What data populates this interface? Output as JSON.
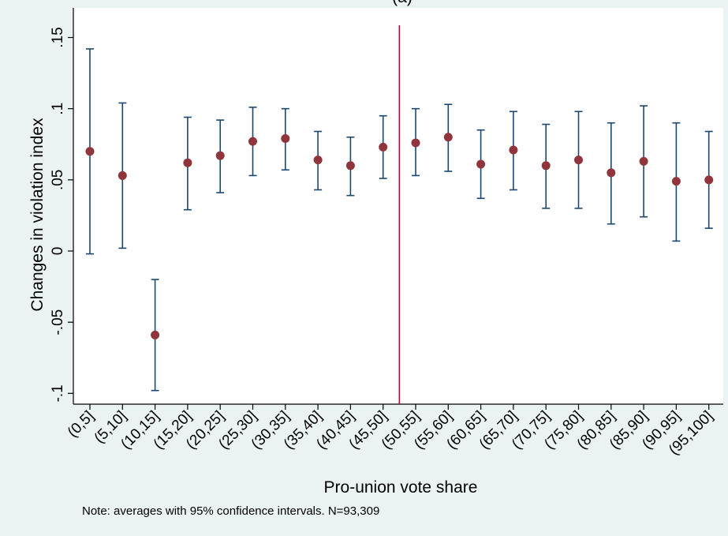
{
  "chart_data": {
    "type": "scatter",
    "title": "(a)",
    "xlabel": "Pro-union vote share",
    "ylabel": "Changes in violation index",
    "note": "Note: averages with 95% confidence intervals. N=93,309",
    "ylim": [
      -0.105,
      0.157
    ],
    "yticks": [
      {
        "value": -0.1,
        "label": "-.1"
      },
      {
        "value": -0.05,
        "label": "-.05"
      },
      {
        "value": 0,
        "label": "0"
      },
      {
        "value": 0.05,
        "label": ".05"
      },
      {
        "value": 0.1,
        "label": ".1"
      },
      {
        "value": 0.15,
        "label": ".15"
      }
    ],
    "categories": [
      "(0,5]",
      "(5,10]",
      "(10,15]",
      "(15,20]",
      "(20,25]",
      "(25,30]",
      "(30,35]",
      "(35,40]",
      "(40,45]",
      "(45,50]",
      "(50,55]",
      "(55,60]",
      "(60,65]",
      "(65,70]",
      "(70,75]",
      "(75,80]",
      "(80,85]",
      "(85,90]",
      "(90,95]",
      "(95,100]"
    ],
    "series": [
      {
        "values": [
          0.07,
          0.053,
          -0.059,
          0.062,
          0.067,
          0.077,
          0.079,
          0.064,
          0.06,
          0.073,
          0.076,
          0.08,
          0.061,
          0.071,
          0.06,
          0.064,
          0.055,
          0.063,
          0.049,
          0.05
        ],
        "ci_low": [
          -0.002,
          0.002,
          -0.098,
          0.029,
          0.041,
          0.053,
          0.057,
          0.043,
          0.039,
          0.051,
          0.053,
          0.056,
          0.037,
          0.043,
          0.03,
          0.03,
          0.019,
          0.024,
          0.007,
          0.016
        ],
        "ci_high": [
          0.142,
          0.104,
          -0.02,
          0.094,
          0.092,
          0.101,
          0.1,
          0.084,
          0.08,
          0.095,
          0.1,
          0.103,
          0.085,
          0.098,
          0.089,
          0.098,
          0.09,
          0.102,
          0.09,
          0.084
        ]
      }
    ],
    "cutoff_after_category": "(45,50]",
    "grid": false,
    "colors": {
      "background": "#eaf2f3",
      "plot_area": "#ffffff",
      "marker": "#90353b",
      "error_bar": "#1a476f",
      "cutoff_line": "#c10534"
    }
  }
}
